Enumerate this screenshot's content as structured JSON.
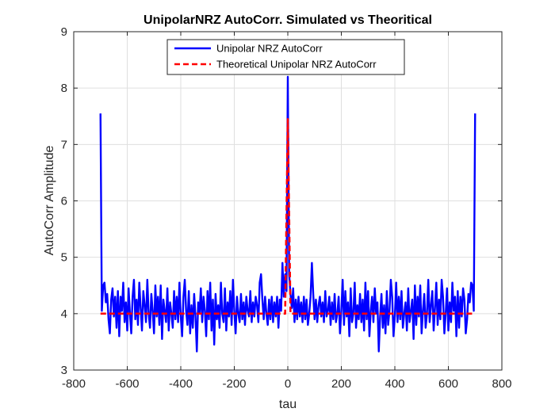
{
  "chart_data": {
    "type": "line",
    "title": "UnipolarNRZ AutoCorr. Simulated vs Theoritical",
    "xlabel": "tau",
    "ylabel": "AutoCorr Amplitude",
    "xlim": [
      -800,
      800
    ],
    "ylim": [
      3,
      9
    ],
    "xticks": [
      -800,
      -600,
      -400,
      -200,
      0,
      200,
      400,
      600,
      800
    ],
    "yticks": [
      3,
      4,
      5,
      6,
      7,
      8,
      9
    ],
    "grid": true,
    "legend_position": "top-center",
    "series": [
      {
        "name": "Unipolar NRZ AutoCorr",
        "color": "#0000ff",
        "style": "solid",
        "points": [
          [
            -700,
            7.55
          ],
          [
            -695,
            4.05
          ],
          [
            -690,
            4.5
          ],
          [
            -685,
            4.55
          ],
          [
            -680,
            4.2
          ],
          [
            -675,
            4.35
          ],
          [
            -670,
            3.9
          ],
          [
            -665,
            3.65
          ],
          [
            -660,
            4.25
          ],
          [
            -655,
            4.45
          ],
          [
            -650,
            3.95
          ],
          [
            -645,
            4.3
          ],
          [
            -640,
            3.75
          ],
          [
            -635,
            4.4
          ],
          [
            -630,
            3.6
          ],
          [
            -625,
            4.3
          ],
          [
            -620,
            4.05
          ],
          [
            -615,
            4.55
          ],
          [
            -610,
            3.85
          ],
          [
            -605,
            4.2
          ],
          [
            -600,
            3.7
          ],
          [
            -595,
            4.45
          ],
          [
            -590,
            4.0
          ],
          [
            -585,
            3.65
          ],
          [
            -580,
            4.3
          ],
          [
            -575,
            4.6
          ],
          [
            -570,
            3.9
          ],
          [
            -565,
            4.25
          ],
          [
            -560,
            3.8
          ],
          [
            -555,
            4.55
          ],
          [
            -550,
            4.1
          ],
          [
            -545,
            3.7
          ],
          [
            -540,
            4.4
          ],
          [
            -535,
            4.15
          ],
          [
            -530,
            3.85
          ],
          [
            -525,
            4.6
          ],
          [
            -520,
            4.0
          ],
          [
            -515,
            3.75
          ],
          [
            -510,
            4.35
          ],
          [
            -505,
            4.05
          ],
          [
            -500,
            3.65
          ],
          [
            -495,
            4.5
          ],
          [
            -490,
            3.95
          ],
          [
            -485,
            4.3
          ],
          [
            -480,
            3.8
          ],
          [
            -475,
            4.5
          ],
          [
            -470,
            3.55
          ],
          [
            -465,
            4.25
          ],
          [
            -460,
            4.05
          ],
          [
            -455,
            3.85
          ],
          [
            -450,
            4.45
          ],
          [
            -445,
            3.7
          ],
          [
            -440,
            4.2
          ],
          [
            -435,
            4.0
          ],
          [
            -430,
            3.75
          ],
          [
            -425,
            4.4
          ],
          [
            -420,
            3.9
          ],
          [
            -415,
            4.3
          ],
          [
            -410,
            3.85
          ],
          [
            -405,
            4.55
          ],
          [
            -400,
            3.95
          ],
          [
            -395,
            3.6
          ],
          [
            -390,
            4.3
          ],
          [
            -385,
            4.6
          ],
          [
            -380,
            4.05
          ],
          [
            -375,
            3.8
          ],
          [
            -370,
            4.4
          ],
          [
            -365,
            3.65
          ],
          [
            -360,
            4.15
          ],
          [
            -355,
            3.75
          ],
          [
            -350,
            4.35
          ],
          [
            -345,
            3.95
          ],
          [
            -340,
            3.33
          ],
          [
            -335,
            4.2
          ],
          [
            -330,
            4.0
          ],
          [
            -325,
            4.45
          ],
          [
            -320,
            3.85
          ],
          [
            -315,
            4.3
          ],
          [
            -310,
            4.05
          ],
          [
            -305,
            3.6
          ],
          [
            -300,
            4.4
          ],
          [
            -295,
            3.9
          ],
          [
            -290,
            4.55
          ],
          [
            -285,
            3.7
          ],
          [
            -280,
            4.25
          ],
          [
            -275,
            3.45
          ],
          [
            -270,
            4.35
          ],
          [
            -265,
            3.9
          ],
          [
            -260,
            4.15
          ],
          [
            -255,
            3.75
          ],
          [
            -250,
            4.55
          ],
          [
            -245,
            4.0
          ],
          [
            -240,
            3.85
          ],
          [
            -235,
            4.45
          ],
          [
            -230,
            3.7
          ],
          [
            -225,
            4.2
          ],
          [
            -220,
            3.95
          ],
          [
            -215,
            4.4
          ],
          [
            -210,
            3.8
          ],
          [
            -205,
            4.6
          ],
          [
            -200,
            4.05
          ],
          [
            -195,
            3.65
          ],
          [
            -190,
            4.3
          ],
          [
            -185,
            4.0
          ],
          [
            -180,
            3.85
          ],
          [
            -175,
            4.35
          ],
          [
            -170,
            3.9
          ],
          [
            -165,
            4.2
          ],
          [
            -160,
            3.8
          ],
          [
            -155,
            4.3
          ],
          [
            -150,
            4.05
          ],
          [
            -145,
            3.95
          ],
          [
            -140,
            4.4
          ],
          [
            -135,
            3.85
          ],
          [
            -130,
            4.2
          ],
          [
            -125,
            3.95
          ],
          [
            -120,
            4.3
          ],
          [
            -115,
            4.15
          ],
          [
            -110,
            3.85
          ],
          [
            -105,
            4.55
          ],
          [
            -100,
            4.7
          ],
          [
            -95,
            4.25
          ],
          [
            -90,
            3.9
          ],
          [
            -85,
            4.3
          ],
          [
            -80,
            4.0
          ],
          [
            -75,
            3.8
          ],
          [
            -70,
            4.25
          ],
          [
            -65,
            3.9
          ],
          [
            -60,
            4.3
          ],
          [
            -55,
            3.85
          ],
          [
            -50,
            4.2
          ],
          [
            -45,
            3.95
          ],
          [
            -40,
            4.3
          ],
          [
            -35,
            3.75
          ],
          [
            -30,
            4.25
          ],
          [
            -25,
            4.05
          ],
          [
            -20,
            4.9
          ],
          [
            -15,
            4.3
          ],
          [
            -10,
            4.7
          ],
          [
            -5,
            4.4
          ],
          [
            0,
            8.2
          ],
          [
            5,
            4.7
          ],
          [
            10,
            4.35
          ],
          [
            15,
            4.1
          ],
          [
            20,
            4.45
          ],
          [
            25,
            3.85
          ],
          [
            30,
            4.25
          ],
          [
            35,
            3.9
          ],
          [
            40,
            4.3
          ],
          [
            45,
            3.95
          ],
          [
            50,
            4.2
          ],
          [
            55,
            3.85
          ],
          [
            60,
            4.3
          ],
          [
            65,
            3.9
          ],
          [
            70,
            4.25
          ],
          [
            75,
            3.8
          ],
          [
            80,
            4.0
          ],
          [
            85,
            4.3
          ],
          [
            90,
            4.9
          ],
          [
            95,
            4.35
          ],
          [
            100,
            3.9
          ],
          [
            105,
            4.25
          ],
          [
            110,
            3.85
          ],
          [
            115,
            4.15
          ],
          [
            120,
            4.3
          ],
          [
            125,
            3.95
          ],
          [
            130,
            4.2
          ],
          [
            135,
            3.85
          ],
          [
            140,
            4.4
          ],
          [
            145,
            3.95
          ],
          [
            150,
            4.05
          ],
          [
            155,
            4.3
          ],
          [
            160,
            3.8
          ],
          [
            165,
            4.2
          ],
          [
            170,
            3.9
          ],
          [
            175,
            4.35
          ],
          [
            180,
            3.85
          ],
          [
            185,
            4.0
          ],
          [
            190,
            4.3
          ],
          [
            195,
            3.65
          ],
          [
            200,
            4.05
          ],
          [
            205,
            4.6
          ],
          [
            210,
            3.8
          ],
          [
            215,
            4.4
          ],
          [
            220,
            3.95
          ],
          [
            225,
            4.2
          ],
          [
            230,
            3.6
          ],
          [
            235,
            4.45
          ],
          [
            240,
            3.85
          ],
          [
            245,
            4.0
          ],
          [
            250,
            4.55
          ],
          [
            255,
            3.75
          ],
          [
            260,
            4.15
          ],
          [
            265,
            3.9
          ],
          [
            270,
            4.35
          ],
          [
            275,
            3.85
          ],
          [
            280,
            4.25
          ],
          [
            285,
            3.7
          ],
          [
            290,
            4.55
          ],
          [
            295,
            3.9
          ],
          [
            300,
            4.4
          ],
          [
            305,
            3.6
          ],
          [
            310,
            4.05
          ],
          [
            315,
            4.3
          ],
          [
            320,
            3.85
          ],
          [
            325,
            4.45
          ],
          [
            330,
            4.0
          ],
          [
            335,
            4.2
          ],
          [
            340,
            3.33
          ],
          [
            345,
            3.95
          ],
          [
            350,
            4.35
          ],
          [
            355,
            3.75
          ],
          [
            360,
            4.15
          ],
          [
            365,
            3.65
          ],
          [
            370,
            4.4
          ],
          [
            375,
            3.8
          ],
          [
            380,
            4.05
          ],
          [
            385,
            4.6
          ],
          [
            390,
            4.3
          ],
          [
            395,
            3.6
          ],
          [
            400,
            3.95
          ],
          [
            405,
            4.55
          ],
          [
            410,
            3.85
          ],
          [
            415,
            4.3
          ],
          [
            420,
            3.9
          ],
          [
            425,
            4.4
          ],
          [
            430,
            3.75
          ],
          [
            435,
            4.0
          ],
          [
            440,
            4.2
          ],
          [
            445,
            3.7
          ],
          [
            450,
            4.45
          ],
          [
            455,
            3.85
          ],
          [
            460,
            4.05
          ],
          [
            465,
            4.25
          ],
          [
            470,
            3.55
          ],
          [
            475,
            4.5
          ],
          [
            480,
            3.8
          ],
          [
            485,
            4.3
          ],
          [
            490,
            3.95
          ],
          [
            495,
            4.5
          ],
          [
            500,
            3.65
          ],
          [
            505,
            4.05
          ],
          [
            510,
            4.35
          ],
          [
            515,
            3.75
          ],
          [
            520,
            4.0
          ],
          [
            525,
            4.6
          ],
          [
            530,
            3.85
          ],
          [
            535,
            4.15
          ],
          [
            540,
            4.4
          ],
          [
            545,
            3.7
          ],
          [
            550,
            4.1
          ],
          [
            555,
            4.55
          ],
          [
            560,
            3.8
          ],
          [
            565,
            4.25
          ],
          [
            570,
            3.9
          ],
          [
            575,
            4.6
          ],
          [
            580,
            4.3
          ],
          [
            585,
            3.65
          ],
          [
            590,
            4.0
          ],
          [
            595,
            4.45
          ],
          [
            600,
            3.7
          ],
          [
            605,
            4.2
          ],
          [
            610,
            3.85
          ],
          [
            615,
            4.55
          ],
          [
            620,
            4.05
          ],
          [
            625,
            4.3
          ],
          [
            630,
            3.6
          ],
          [
            635,
            4.4
          ],
          [
            640,
            3.75
          ],
          [
            645,
            4.3
          ],
          [
            650,
            3.95
          ],
          [
            655,
            4.45
          ],
          [
            660,
            4.25
          ],
          [
            665,
            3.65
          ],
          [
            670,
            3.9
          ],
          [
            675,
            4.35
          ],
          [
            680,
            4.2
          ],
          [
            685,
            4.55
          ],
          [
            690,
            4.5
          ],
          [
            695,
            4.05
          ],
          [
            700,
            7.55
          ]
        ]
      },
      {
        "name": "Theoretical Unipolar NRZ AutoCorr",
        "color": "#ff0000",
        "style": "dashed",
        "points": [
          [
            -700,
            4.0
          ],
          [
            -10,
            4.0
          ],
          [
            0,
            7.45
          ],
          [
            10,
            4.0
          ],
          [
            700,
            4.0
          ]
        ]
      }
    ]
  }
}
